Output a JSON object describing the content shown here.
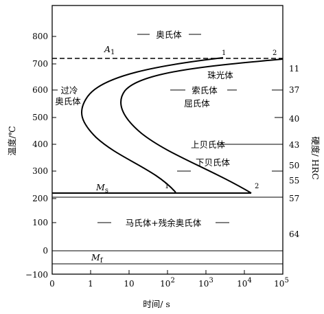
{
  "diagram": {
    "x_axis": {
      "title": "时间/ s",
      "tick_labels": [
        "0",
        "1",
        "10",
        "10",
        "10",
        "10",
        "10"
      ],
      "tick_exponents": [
        "",
        "",
        "",
        "2",
        "3",
        "4",
        "5"
      ]
    },
    "y_axis_left": {
      "title": "温度/℃",
      "tick_labels": [
        "800",
        "700",
        "600",
        "500",
        "400",
        "300",
        "200",
        "100",
        "0",
        "−100"
      ]
    },
    "y_axis_right": {
      "title": "硬度/ HRC",
      "tick_labels": [
        "11",
        "37",
        "40",
        "43",
        "50",
        "55",
        "57",
        "64"
      ]
    },
    "lines": {
      "a1": {
        "label": "A",
        "sub": "1"
      },
      "ms": {
        "label": "M",
        "sub": "s"
      },
      "mf": {
        "label": "M",
        "sub": "f"
      }
    },
    "curve_labels": {
      "start_top": "1",
      "finish_top": "2",
      "start_bottom": "1",
      "finish_bottom": "2"
    },
    "regions": {
      "austenite": "奥氏体",
      "undercooled_1": "过冷",
      "undercooled_2": "奥氏体",
      "pearlite": "珠光体",
      "sorbite": "索氏体",
      "troostite": "屈氏体",
      "upper_bainite": "上贝氏体",
      "lower_bainite": "下贝氏体",
      "martensite": "马氏体+残余奥氏体"
    }
  }
}
